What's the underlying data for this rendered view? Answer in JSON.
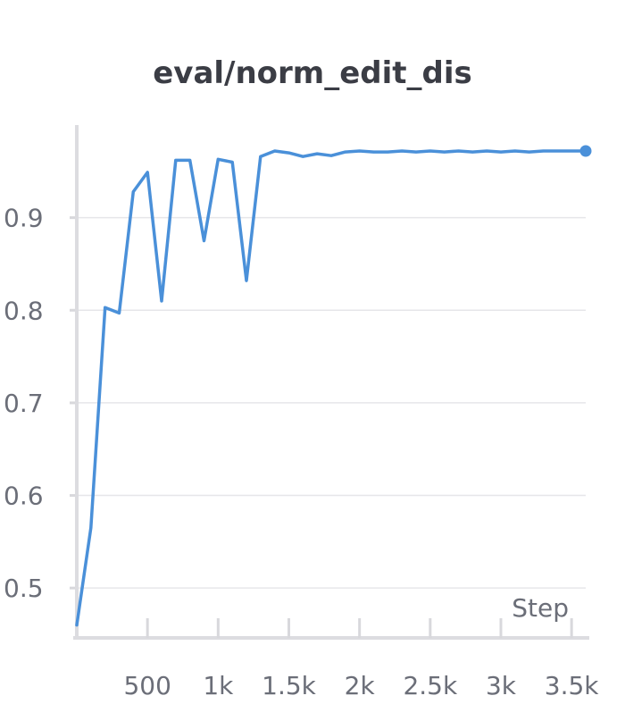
{
  "chart_data": {
    "type": "line",
    "title": "eval/norm_edit_dis",
    "xlabel": "Step",
    "ylabel": "",
    "xlim": [
      0,
      3600
    ],
    "ylim": [
      0.45,
      1.0
    ],
    "x_ticks": [
      500,
      1000,
      1500,
      2000,
      2500,
      3000,
      3500
    ],
    "x_tick_labels": [
      "500",
      "1k",
      "1.5k",
      "2k",
      "2.5k",
      "3k",
      "3.5k"
    ],
    "y_ticks": [
      0.5,
      0.6,
      0.7,
      0.8,
      0.9
    ],
    "y_tick_labels": [
      "0.5",
      "0.6",
      "0.7",
      "0.8",
      "0.9"
    ],
    "grid": true,
    "line_color": "#4a90d9",
    "series": [
      {
        "name": "",
        "x": [
          0,
          100,
          200,
          300,
          400,
          500,
          600,
          700,
          800,
          900,
          1000,
          1100,
          1200,
          1300,
          1400,
          1500,
          1600,
          1700,
          1800,
          1900,
          2000,
          2100,
          2200,
          2300,
          2400,
          2500,
          2600,
          2700,
          2800,
          2900,
          3000,
          3100,
          3200,
          3300,
          3400,
          3500,
          3600
        ],
        "y": [
          0.46,
          0.565,
          0.803,
          0.797,
          0.928,
          0.949,
          0.81,
          0.962,
          0.962,
          0.875,
          0.963,
          0.96,
          0.832,
          0.966,
          0.972,
          0.97,
          0.966,
          0.969,
          0.967,
          0.971,
          0.972,
          0.971,
          0.971,
          0.972,
          0.971,
          0.972,
          0.971,
          0.972,
          0.971,
          0.972,
          0.971,
          0.972,
          0.971,
          0.972,
          0.972,
          0.972,
          0.972
        ]
      }
    ]
  }
}
